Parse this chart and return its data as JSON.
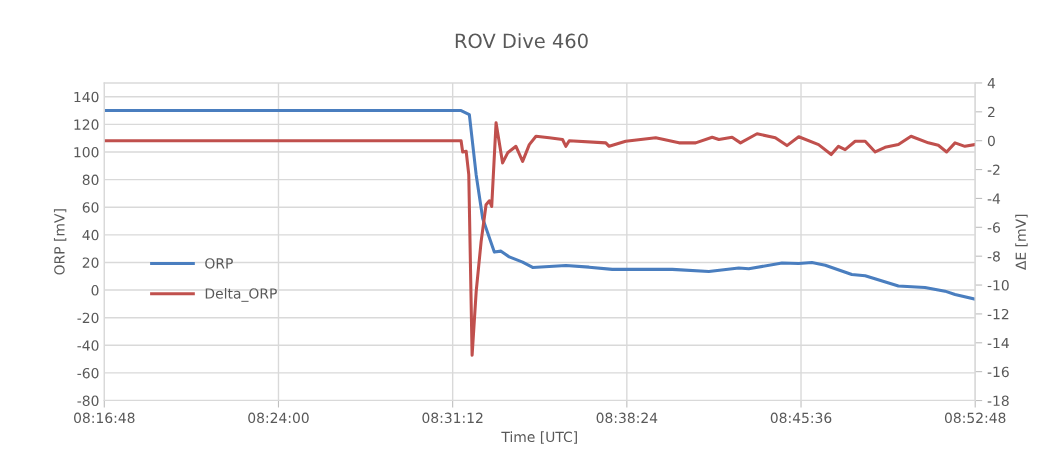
{
  "chart_data": {
    "type": "line",
    "title": "ROV Dive 460",
    "xlabel": "Time [UTC]",
    "ylabel": "ORP [mV]",
    "y2label": "ΔE [mV]",
    "xlim": [
      8.28,
      8.88
    ],
    "xticks": [
      {
        "value": 8.28,
        "label": "08:16:48"
      },
      {
        "value": 8.4,
        "label": "08:24:00"
      },
      {
        "value": 8.52,
        "label": "08:31:12"
      },
      {
        "value": 8.64,
        "label": "08:38:24"
      },
      {
        "value": 8.76,
        "label": "08:45:36"
      },
      {
        "value": 8.88,
        "label": "08:52:48"
      }
    ],
    "ylim": [
      -80,
      150
    ],
    "yticks": [
      -80,
      -60,
      -40,
      -20,
      0,
      20,
      40,
      60,
      80,
      100,
      120,
      140
    ],
    "y2lim": [
      -18,
      4
    ],
    "y2ticks": [
      -18,
      -16,
      -14,
      -12,
      -10,
      -8,
      -6,
      -4,
      -2,
      0,
      2,
      4
    ],
    "grid": true,
    "legend": "left",
    "marker": "none",
    "line_style": "solid",
    "series": [
      {
        "name": "ORP",
        "color": "#4a7ebf",
        "x": [
          8.28,
          8.4,
          8.5258,
          8.5315,
          8.5362,
          8.5407,
          8.5487,
          8.5533,
          8.559,
          8.5682,
          8.5751,
          8.598,
          8.614,
          8.63,
          8.6713,
          8.6965,
          8.7171,
          8.724,
          8.7469,
          8.7584,
          8.7675,
          8.7767,
          8.795,
          8.8042,
          8.8271,
          8.8454,
          8.8592,
          8.8661,
          8.8798
        ],
        "values": [
          130,
          130,
          130,
          127.1,
          83.4,
          51.8,
          27.5,
          28.2,
          24,
          20.2,
          16.4,
          17.8,
          16.6,
          15,
          15,
          13.5,
          16,
          15.4,
          19.6,
          19.2,
          19.9,
          18,
          11.3,
          10.4,
          2.9,
          1.9,
          -0.8,
          -3.2,
          -6.6
        ]
      },
      {
        "name": "Delta_ORP",
        "color": "#c0504d",
        "axis": "y2",
        "x": [
          8.28,
          8.33,
          8.38,
          8.43,
          8.48,
          8.5235,
          8.5258,
          8.5269,
          8.5293,
          8.5311,
          8.5334,
          8.5362,
          8.5396,
          8.543,
          8.5453,
          8.5469,
          8.5499,
          8.5544,
          8.5579,
          8.5636,
          8.5682,
          8.5728,
          8.5774,
          8.5865,
          8.5957,
          8.598,
          8.6003,
          8.6255,
          8.6278,
          8.6392,
          8.6599,
          8.6759,
          8.6874,
          8.6988,
          8.7034,
          8.7125,
          8.7183,
          8.7297,
          8.7423,
          8.7503,
          8.7584,
          8.7721,
          8.7808,
          8.7858,
          8.7904,
          8.7973,
          8.8042,
          8.8111,
          8.8179,
          8.8271,
          8.8358,
          8.8477,
          8.8546,
          8.8603,
          8.8661,
          8.8729,
          8.8798
        ],
        "values": [
          0,
          0,
          0,
          0,
          0,
          0,
          0,
          -0.78,
          -0.73,
          -2.35,
          -14.86,
          -10.46,
          -6.99,
          -4.44,
          -4.16,
          -4.56,
          1.24,
          -1.54,
          -0.84,
          -0.39,
          -1.43,
          -0.27,
          0.31,
          0.2,
          0.08,
          -0.39,
          0,
          -0.15,
          -0.39,
          -0.04,
          0.2,
          -0.15,
          -0.15,
          0.24,
          0.08,
          0.24,
          -0.15,
          0.48,
          0.2,
          -0.34,
          0.27,
          -0.27,
          -0.96,
          -0.39,
          -0.62,
          -0.04,
          -0.04,
          -0.78,
          -0.46,
          -0.27,
          0.31,
          -0.15,
          -0.32,
          -0.78,
          -0.15,
          -0.39,
          -0.27
        ]
      }
    ]
  }
}
